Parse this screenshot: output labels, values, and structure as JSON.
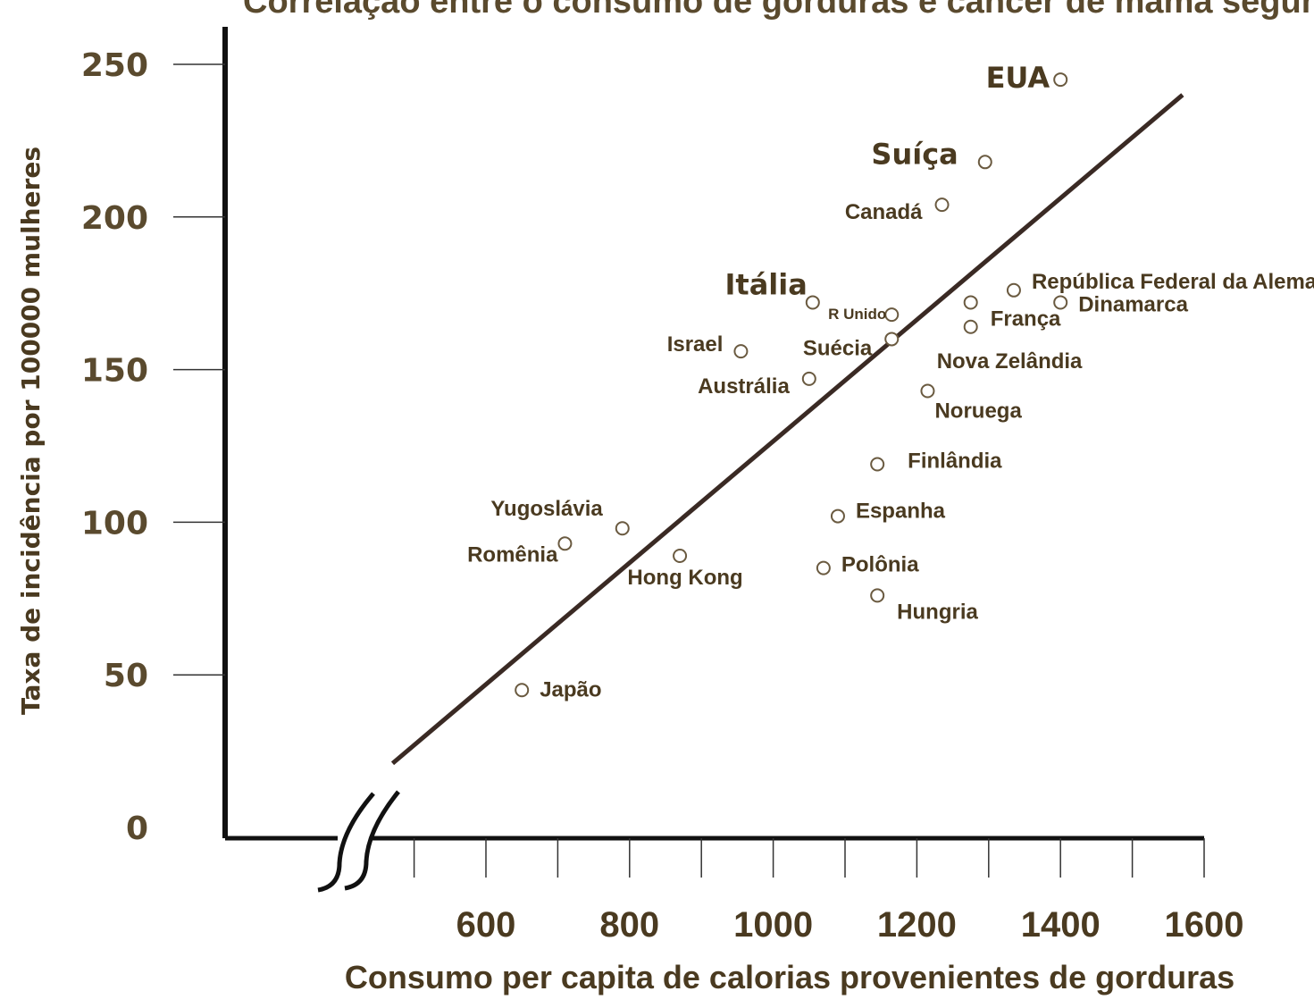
{
  "chart_data": {
    "type": "scatter",
    "title": "Correlação entre o consumo de gorduras e câncer de mama segundo alguns p",
    "xlabel": "Consumo per capita de calorias provenientes de gorduras",
    "ylabel": "Taxa de incidência por 100000 mulheres",
    "x_ticks": [
      "600",
      "800",
      "1000",
      "1200",
      "1400",
      "1600"
    ],
    "y_ticks": [
      "0",
      "50",
      "100",
      "150",
      "200",
      "250"
    ],
    "xlim": [
      320,
      1600
    ],
    "ylim": [
      0,
      250
    ],
    "axis_break": "x",
    "grid": false,
    "legend": "none",
    "colors": {
      "text": "#4a3a20",
      "trend_line": "#3a2a24",
      "marker_fill": "#ffffff",
      "marker_stroke": "#6a5a40"
    },
    "trend_line": {
      "x": [
        470,
        1570
      ],
      "y": [
        21,
        240
      ]
    },
    "points": [
      {
        "label": "EUA",
        "x": 1400,
        "y": 245
      },
      {
        "label": "Suíça",
        "x": 1295,
        "y": 218
      },
      {
        "label": "Canadá",
        "x": 1235,
        "y": 204
      },
      {
        "label": "República Federal da Alemanha",
        "x": 1335,
        "y": 176
      },
      {
        "label": "Dinamarca",
        "x": 1400,
        "y": 172
      },
      {
        "label": "França",
        "x": 1275,
        "y": 172
      },
      {
        "label": "Nova Zelândia",
        "x": 1275,
        "y": 164
      },
      {
        "label": "Itália",
        "x": 1055,
        "y": 172
      },
      {
        "label": "R Unido",
        "x": 1165,
        "y": 168
      },
      {
        "label": "Suécia",
        "x": 1165,
        "y": 160
      },
      {
        "label": "Israel",
        "x": 955,
        "y": 156
      },
      {
        "label": "Austrália",
        "x": 1050,
        "y": 147
      },
      {
        "label": "Noruega",
        "x": 1215,
        "y": 143
      },
      {
        "label": "Finlândia",
        "x": 1145,
        "y": 119
      },
      {
        "label": "Espanha",
        "x": 1090,
        "y": 102
      },
      {
        "label": "Yugoslávia",
        "x": 790,
        "y": 98
      },
      {
        "label": "Romênia",
        "x": 710,
        "y": 93
      },
      {
        "label": "Hong Kong",
        "x": 870,
        "y": 89
      },
      {
        "label": "Polônia",
        "x": 1070,
        "y": 85
      },
      {
        "label": "Hungria",
        "x": 1145,
        "y": 76
      },
      {
        "label": "Japão",
        "x": 650,
        "y": 45
      }
    ]
  }
}
